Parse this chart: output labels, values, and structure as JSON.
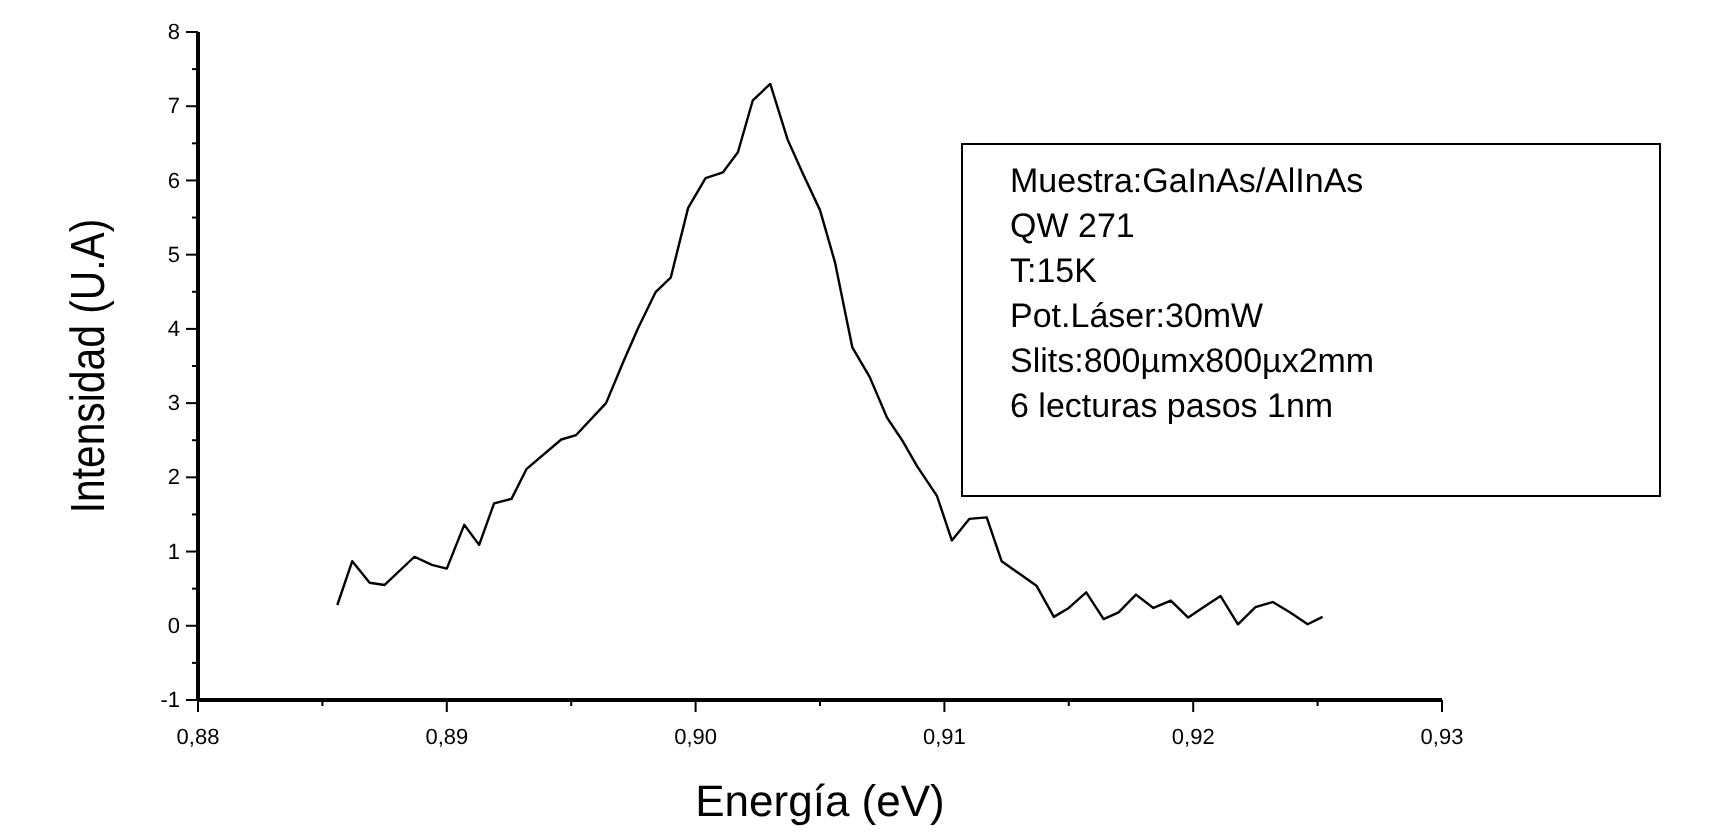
{
  "chart_data": {
    "type": "line",
    "xlabel": "Energía (eV)",
    "ylabel": "Intensidad (U.A)",
    "xlim": [
      0.88,
      0.93
    ],
    "xticks": [
      {
        "value": 0.88,
        "label": "0,88"
      },
      {
        "value": 0.89,
        "label": "0,89"
      },
      {
        "value": 0.9,
        "label": "0,90"
      },
      {
        "value": 0.91,
        "label": "0,91"
      },
      {
        "value": 0.92,
        "label": "0,92"
      },
      {
        "value": 0.93,
        "label": "0,93"
      }
    ],
    "ylim": [
      -1,
      8
    ],
    "yticks": [
      -1,
      0,
      1,
      2,
      3,
      4,
      5,
      6,
      7,
      8
    ],
    "grid": false,
    "marker": "none",
    "line_style": "solid",
    "annotations": [
      "Muestra:GaInAs/AlInAs",
      "QW 271",
      "T:15K",
      "Pot.Láser:30mW",
      "Slits:800µmx800µx2mm",
      "6 lecturas pasos 1nm"
    ],
    "series": [
      {
        "color": "#000000",
        "x": [
          0.8856,
          0.8862,
          0.8869,
          0.8875,
          0.8887,
          0.8894,
          0.89,
          0.8907,
          0.8913,
          0.8919,
          0.8926,
          0.8932,
          0.8946,
          0.8952,
          0.8964,
          0.8971,
          0.8977,
          0.8984,
          0.899,
          0.8997,
          0.9004,
          0.9011,
          0.9017,
          0.9023,
          0.903,
          0.9037,
          0.9043,
          0.905,
          0.9056,
          0.9063,
          0.907,
          0.9077,
          0.9083,
          0.9089,
          0.9097,
          0.9103,
          0.911,
          0.9117,
          0.9123,
          0.9137,
          0.9144,
          0.915,
          0.9157,
          0.9164,
          0.917,
          0.9177,
          0.9184,
          0.9191,
          0.9198,
          0.9205,
          0.9211,
          0.9218,
          0.9225,
          0.9232,
          0.9239,
          0.9246,
          0.9252
        ],
        "values": [
          0.28,
          0.87,
          0.58,
          0.55,
          0.93,
          0.82,
          0.77,
          1.36,
          1.09,
          1.65,
          1.71,
          2.11,
          2.51,
          2.57,
          3.0,
          3.56,
          4.02,
          4.5,
          4.69,
          5.63,
          6.03,
          6.11,
          6.38,
          7.08,
          7.3,
          6.55,
          6.1,
          5.6,
          4.9,
          3.75,
          3.35,
          2.8,
          2.5,
          2.15,
          1.75,
          1.15,
          1.44,
          1.46,
          0.87,
          0.54,
          0.12,
          0.24,
          0.45,
          0.09,
          0.18,
          0.42,
          0.24,
          0.34,
          0.11,
          0.27,
          0.4,
          0.02,
          0.25,
          0.32,
          0.18,
          0.02,
          0.12
        ]
      }
    ]
  }
}
